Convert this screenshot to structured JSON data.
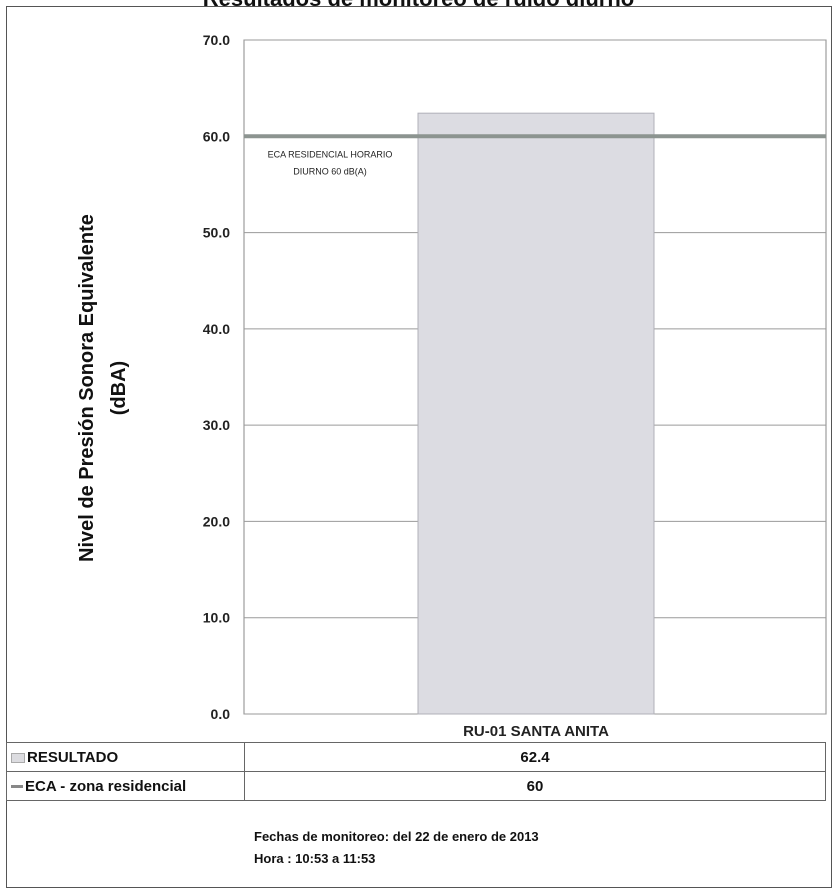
{
  "chart_data": {
    "type": "bar",
    "title": "Resultados de monitoreo de ruido diurno",
    "ylabel_line1": "Nivel de Presión Sonora Equivalente",
    "ylabel_line2": "(dBA)",
    "categories": [
      "RU-01 SANTA ANITA"
    ],
    "series": [
      {
        "name": "RESULTADO",
        "values": [
          62.4
        ],
        "color": "#dcdce2"
      },
      {
        "name": "ECA - zona residencial",
        "values": [
          60
        ],
        "color": "#8c9490",
        "style": "line"
      }
    ],
    "ylim": [
      0,
      70
    ],
    "yticks": [
      "0.0",
      "10.0",
      "20.0",
      "30.0",
      "40.0",
      "50.0",
      "60.0",
      "70.0"
    ],
    "grid": true,
    "annotation": {
      "line1": "ECA RESIDENCIAL HORARIO",
      "line2": "DIURNO 60 dB(A)"
    },
    "table": [
      {
        "legend": "RESULTADO",
        "value": "62.4"
      },
      {
        "legend": "ECA - zona residencial",
        "value": "60"
      }
    ]
  },
  "footer": {
    "line1": "Fechas de monitoreo: del 22 de enero de 2013",
    "line2": "Hora :  10:53 a 11:53"
  }
}
